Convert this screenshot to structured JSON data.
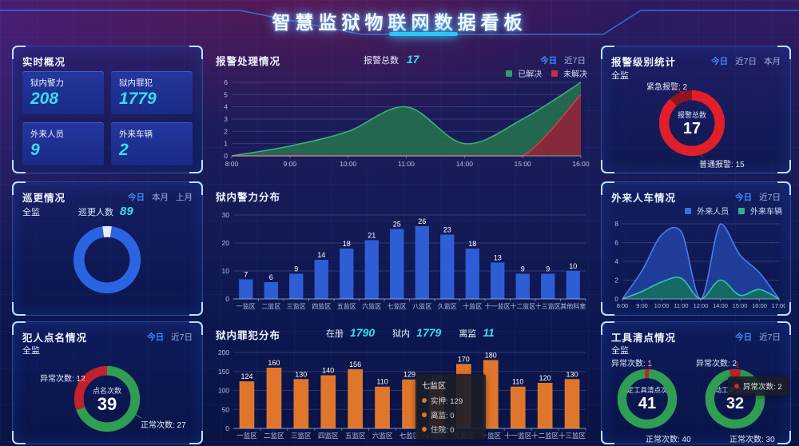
{
  "header": {
    "title": "智慧监狱物联网数据看板"
  },
  "accent": {
    "active_tab": "#3e8cff",
    "cyan": "#35def2"
  },
  "panels": {
    "realtime": {
      "title": "实时概况",
      "stats": [
        {
          "label": "狱内警力",
          "value": "208"
        },
        {
          "label": "狱内罪犯",
          "value": "1779"
        },
        {
          "label": "外来人员",
          "value": "9"
        },
        {
          "label": "外来车辆",
          "value": "2"
        }
      ]
    },
    "alarm_trend": {
      "title": "报警处理情况",
      "total_label": "报警总数",
      "total_value": "17",
      "tabs": [
        "今日",
        "近7日"
      ],
      "legend": [
        {
          "label": "已解决",
          "color": "#2f9e68"
        },
        {
          "label": "未解决",
          "color": "#c5303f"
        }
      ]
    },
    "alarm_level": {
      "title": "报警级别统计",
      "tabs": [
        "今日",
        "近7日",
        "本月"
      ],
      "scope": "全监",
      "center_label": "报警总数",
      "center_value": "17",
      "callout_emergency": "紧急报警: 2",
      "callout_normal": "普通报警: 15"
    },
    "patrol": {
      "title": "巡更情况",
      "tabs": [
        "今日",
        "本月",
        "上月"
      ],
      "scope": "全监",
      "count_label": "巡更人数",
      "count_value": "89"
    },
    "police_dist": {
      "title": "狱内警力分布"
    },
    "visitors": {
      "title": "外来人车情况",
      "tabs": [
        "今日",
        "近7日"
      ],
      "legend": [
        {
          "label": "外来人员",
          "color": "#3b6fe0"
        },
        {
          "label": "外来车辆",
          "color": "#2fae9b"
        }
      ]
    },
    "rollcall": {
      "title": "犯人点名情况",
      "tabs": [
        "今日",
        "近7日"
      ],
      "scope": "全监",
      "center_label": "点名次数",
      "center_value": "39",
      "callout_abnormal": "异常次数: 12",
      "callout_normal": "正常次数: 27"
    },
    "prisoner_dist": {
      "title": "狱内罪犯分布",
      "stats": [
        {
          "label": "在册",
          "value": "1790"
        },
        {
          "label": "狱内",
          "value": "1779"
        },
        {
          "label": "离监",
          "value": "11"
        }
      ],
      "tooltip": {
        "title": "七监区",
        "rows": [
          {
            "text": "实押: 129"
          },
          {
            "text": "离监: 0"
          },
          {
            "text": "住院: 0"
          }
        ]
      }
    },
    "tools": {
      "title": "工具清点情况",
      "tabs": [
        "今日",
        "近7日"
      ],
      "scope": "全监",
      "fixed": {
        "center_label": "固定工具清点次数",
        "center_value": "41",
        "callout_abnormal": "异常次数: 1",
        "callout_normal": "正常次数: 40"
      },
      "mobile": {
        "center_label": "移动工具清点次数",
        "center_value": "32",
        "callout_abnormal": "异常次数: 2",
        "callout_normal": "正常次数: 30"
      },
      "tooltip": "异常次数: 2"
    }
  },
  "chart_data": [
    {
      "id": "alarm-area",
      "type": "area",
      "title": "报警处理情况",
      "x": [
        "8:00",
        "9:00",
        "10:00",
        "11:00",
        "14:00",
        "15:00",
        "16:00"
      ],
      "ylim": [
        0,
        6
      ],
      "yticks": [
        0,
        1,
        2,
        3,
        4,
        5,
        6
      ],
      "grid": true,
      "legend_position": "top-right",
      "series": [
        {
          "name": "已解决",
          "color": "#3fae79",
          "fill": "#256e4f",
          "values": [
            0,
            0.8,
            2,
            4,
            1,
            3,
            6
          ]
        },
        {
          "name": "未解决",
          "color": "#d4394e",
          "fill": "#8e2538",
          "values": [
            0,
            0,
            0,
            0,
            0,
            0,
            5
          ]
        }
      ]
    },
    {
      "id": "police-bar",
      "type": "bar",
      "title": "狱内警力分布",
      "categories": [
        "一监区",
        "二监区",
        "三监区",
        "四监区",
        "五监区",
        "六监区",
        "七监区",
        "八监区",
        "久监区",
        "十监区",
        "十一监区",
        "十二监区",
        "十三监区",
        "其他科室"
      ],
      "values": [
        7,
        6,
        9,
        14,
        18,
        21,
        25,
        26,
        23,
        18,
        13,
        9,
        9,
        10
      ],
      "ylim": [
        0,
        30
      ],
      "yticks": [
        0,
        10,
        20,
        30
      ],
      "grid": true,
      "color": "#2d5ed6",
      "cat_font": 8
    },
    {
      "id": "visitor-area",
      "type": "area",
      "title": "外来人车情况",
      "x": [
        "8:00",
        "9:00",
        "10:00",
        "11:00",
        "12:00",
        "14:00",
        "15:00",
        "16:00",
        "17:00"
      ],
      "ylim": [
        0,
        8
      ],
      "yticks": [
        0,
        2,
        4,
        6,
        8
      ],
      "grid": true,
      "legend_position": "top-right",
      "series": [
        {
          "name": "外来人员",
          "color": "#4a7de8",
          "fill": "#22409f",
          "values": [
            0,
            3,
            6.8,
            7.2,
            0,
            8,
            4.7,
            2.8,
            0
          ]
        },
        {
          "name": "外来车辆",
          "color": "#35c3a9",
          "fill": "#156f62",
          "values": [
            0,
            0.8,
            1.8,
            2.2,
            0,
            2,
            0.4,
            1,
            0
          ]
        }
      ],
      "cat_font": 7.5
    },
    {
      "id": "prisoner-bar",
      "type": "bar",
      "title": "狱内罪犯分布",
      "categories": [
        "一监区",
        "二监区",
        "三监区",
        "四监区",
        "五监区",
        "六监区",
        "七监区",
        "八监区",
        "久监区",
        "十监区",
        "十一监区",
        "十二监区",
        "十三监区"
      ],
      "values": [
        124,
        160,
        130,
        140,
        156,
        110,
        129,
        120,
        170,
        180,
        110,
        120,
        130
      ],
      "ylim": [
        0,
        200
      ],
      "yticks": [
        0,
        50,
        100,
        150,
        200
      ],
      "grid": true,
      "color": "#e0762b",
      "cat_font": 8.5
    },
    {
      "id": "alarm-level-donut",
      "type": "pie",
      "start_deg": 0,
      "thickness": 15,
      "center": {
        "label": "报警总数",
        "value": 17
      },
      "segments": [
        {
          "label": "普通报警",
          "value": 15,
          "color": "#e11f2a"
        },
        {
          "label": "紧急报警",
          "value": 2,
          "color": "#8e1422"
        }
      ]
    },
    {
      "id": "patrol-donut",
      "type": "pie",
      "start_deg": -8,
      "thickness": 16,
      "segments": [
        {
          "label": "",
          "value": 4,
          "color": "#e7edf6"
        },
        {
          "label": "巡更人数",
          "value": 85,
          "color": "#2b64e3"
        }
      ]
    },
    {
      "id": "rollcall-donut",
      "type": "pie",
      "start_deg": 0,
      "thickness": 14,
      "center": {
        "label": "点名次数",
        "value": 39
      },
      "segments": [
        {
          "label": "正常次数",
          "value": 27,
          "color": "#2f9e52"
        },
        {
          "label": "异常次数",
          "value": 12,
          "color": "#c2212f"
        }
      ]
    },
    {
      "id": "tools-fixed-donut",
      "type": "pie",
      "start_deg": -5,
      "thickness": 15,
      "center": {
        "label": "固定工具清点次数",
        "value": 41
      },
      "segments": [
        {
          "label": "异常次数",
          "value": 1,
          "color": "#c2212f"
        },
        {
          "label": "正常次数",
          "value": 40,
          "color": "#2f9e52"
        }
      ]
    },
    {
      "id": "tools-mobile-donut",
      "type": "pie",
      "start_deg": -11,
      "thickness": 15,
      "center": {
        "label": "移动工具清点次数",
        "value": 32
      },
      "segments": [
        {
          "label": "异常次数",
          "value": 2,
          "color": "#c2212f"
        },
        {
          "label": "正常次数",
          "value": 30,
          "color": "#2f9e52"
        }
      ]
    }
  ]
}
